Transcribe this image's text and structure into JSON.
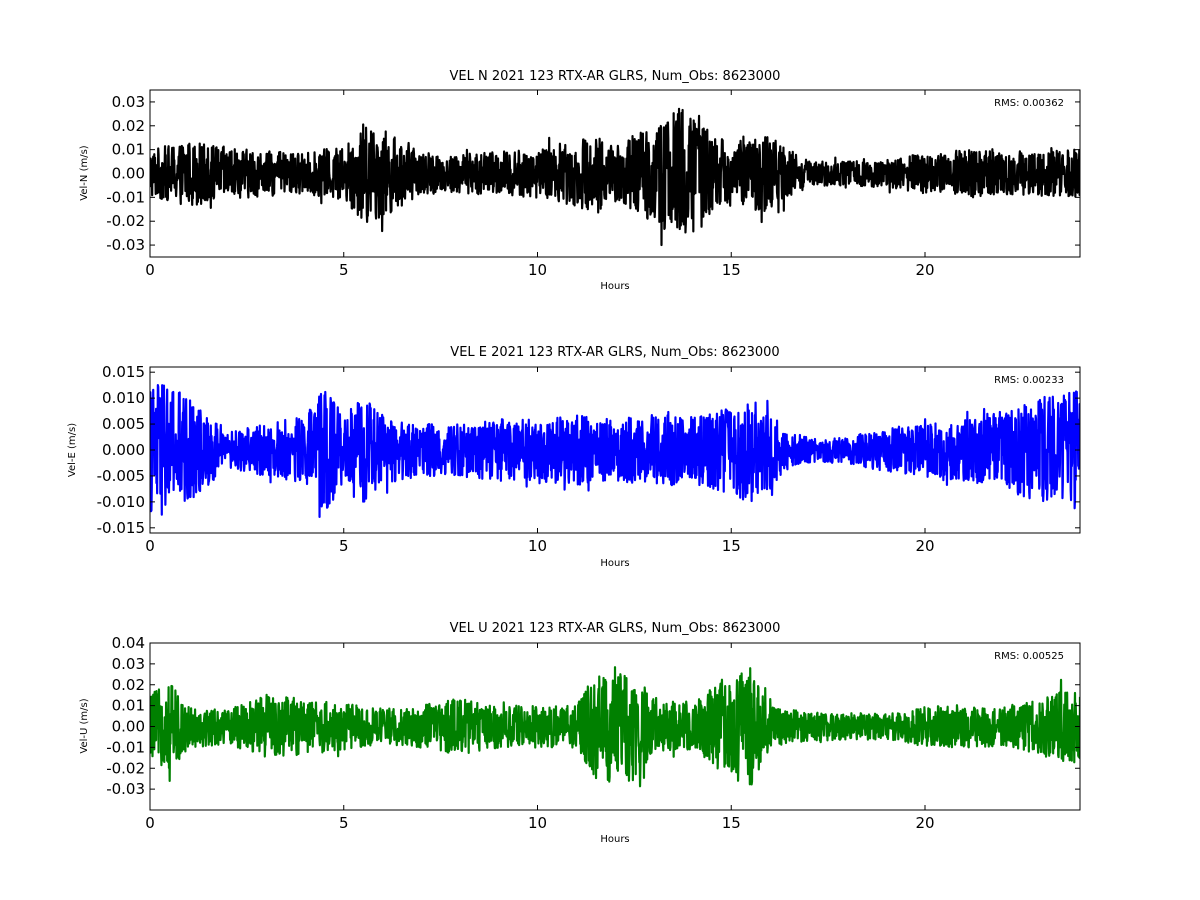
{
  "chart_data": [
    {
      "type": "line",
      "title": "VEL N 2021 123 RTX-AR  GLRS, Num_Obs: 8623000",
      "xlabel": "Hours",
      "ylabel": "Vel-N (m/s)",
      "xlim": [
        0,
        24
      ],
      "ylim": [
        -0.035,
        0.035
      ],
      "xticks": [
        "0",
        "5",
        "10",
        "15",
        "20"
      ],
      "yticks": [
        "-0.03",
        "-0.02",
        "-0.01",
        "0.00",
        "0.01",
        "0.02",
        "0.03"
      ],
      "annotation": "RMS:  0.00362",
      "annotation_color": "#0000ff",
      "series": [
        {
          "color": "#000000",
          "x": [
            0,
            1,
            2,
            3,
            4,
            5,
            5.5,
            6,
            7,
            8,
            9,
            10,
            11,
            11.5,
            12,
            13,
            13.5,
            14,
            14.5,
            15,
            16,
            16.5,
            17,
            18,
            19,
            20,
            21,
            22,
            23,
            24
          ],
          "envelope": [
            0.012,
            0.016,
            0.013,
            0.011,
            0.01,
            0.014,
            0.025,
            0.022,
            0.01,
            0.01,
            0.011,
            0.012,
            0.016,
            0.02,
            0.014,
            0.024,
            0.031,
            0.034,
            0.018,
            0.016,
            0.019,
            0.013,
            0.006,
            0.006,
            0.007,
            0.01,
            0.012,
            0.011,
            0.011,
            0.012
          ]
        }
      ]
    },
    {
      "type": "line",
      "title": "VEL E 2021 123 RTX-AR  GLRS, Num_Obs: 8623000",
      "xlabel": "Hours",
      "ylabel": "Vel-E (m/s)",
      "xlim": [
        0,
        24
      ],
      "ylim": [
        -0.016,
        0.016
      ],
      "xticks": [
        "0",
        "5",
        "10",
        "15",
        "20"
      ],
      "yticks": [
        "-0.015",
        "-0.010",
        "-0.005",
        "0.000",
        "0.005",
        "0.010",
        "0.015"
      ],
      "annotation": "RMS:  0.00233",
      "annotation_color": "#0000ff",
      "series": [
        {
          "color": "#0000ff",
          "x": [
            0,
            0.5,
            1,
            1.5,
            2,
            3,
            4,
            4.5,
            5,
            5.5,
            6,
            7,
            8,
            9,
            10,
            11,
            12,
            13,
            14,
            15,
            15.5,
            16,
            16.5,
            17,
            18,
            19,
            20,
            21,
            22,
            23,
            24
          ],
          "envelope": [
            0.015,
            0.016,
            0.012,
            0.008,
            0.004,
            0.006,
            0.008,
            0.014,
            0.008,
            0.012,
            0.008,
            0.006,
            0.006,
            0.007,
            0.007,
            0.008,
            0.007,
            0.008,
            0.008,
            0.01,
            0.012,
            0.009,
            0.004,
            0.003,
            0.003,
            0.005,
            0.006,
            0.007,
            0.009,
            0.012,
            0.014
          ]
        }
      ]
    },
    {
      "type": "line",
      "title": "VEL U 2021 123 RTX-AR  GLRS, Num_Obs: 8623000",
      "xlabel": "Hours",
      "ylabel": "Vel-U (m/s)",
      "xlim": [
        0,
        24
      ],
      "ylim": [
        -0.04,
        0.04
      ],
      "xticks": [
        "0",
        "5",
        "10",
        "15",
        "20"
      ],
      "yticks": [
        "-0.03",
        "-0.02",
        "-0.01",
        "0.00",
        "0.01",
        "0.02",
        "0.03",
        "0.04"
      ],
      "annotation": "RMS:  0.00525",
      "annotation_color": "#0000ff",
      "series": [
        {
          "color": "#008000",
          "x": [
            0,
            0.5,
            1,
            2,
            3,
            4,
            5,
            6,
            7,
            8,
            9,
            10,
            11,
            11.5,
            12,
            12.5,
            13,
            14,
            15,
            15.5,
            16,
            17,
            18,
            19,
            20,
            21,
            22,
            23,
            23.5,
            24
          ],
          "envelope": [
            0.018,
            0.025,
            0.012,
            0.01,
            0.018,
            0.016,
            0.013,
            0.01,
            0.012,
            0.016,
            0.012,
            0.012,
            0.012,
            0.03,
            0.034,
            0.03,
            0.015,
            0.013,
            0.03,
            0.034,
            0.012,
            0.008,
            0.008,
            0.007,
            0.012,
            0.012,
            0.011,
            0.016,
            0.02,
            0.022
          ]
        }
      ]
    }
  ]
}
